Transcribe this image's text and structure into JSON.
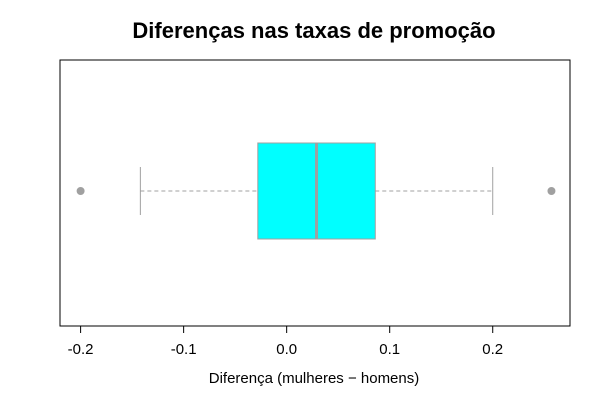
{
  "chart_data": {
    "type": "boxplot",
    "orientation": "horizontal",
    "title": "Diferenças nas taxas de promoção",
    "xlabel": "Diferença (mulheres − homens)",
    "ylabel": "",
    "xlim": [
      -0.22,
      0.275
    ],
    "xticks": [
      -0.2,
      -0.1,
      0.0,
      0.1,
      0.2
    ],
    "xtick_labels": [
      "-0.2",
      "-0.1",
      "0.0",
      "0.1",
      "0.2"
    ],
    "box": {
      "whisker_low": -0.142,
      "q1": -0.028,
      "median": 0.029,
      "q3": 0.086,
      "whisker_high": 0.2
    },
    "outliers": [
      -0.2,
      0.257
    ],
    "colors": {
      "box_fill": "#00FFFF",
      "box_edge": "#A0A0A0",
      "median": "#A0A0A0",
      "whisker": "#A0A0A0",
      "outlier": "#A0A0A0",
      "frame": "#000000"
    },
    "grid": false
  }
}
